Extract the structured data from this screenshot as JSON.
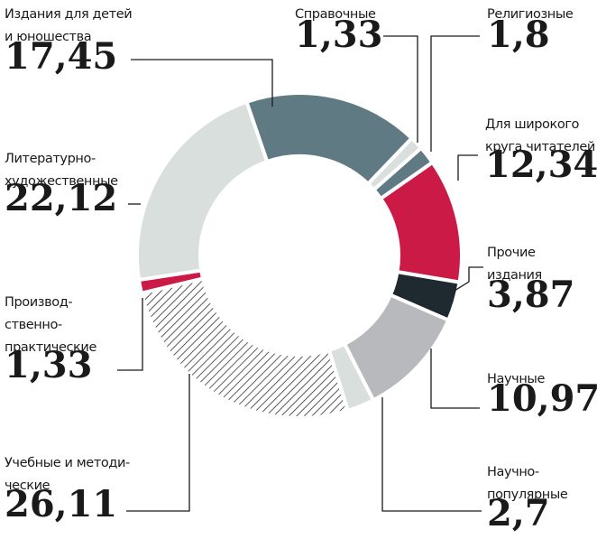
{
  "chart_data": {
    "type": "donut",
    "categories": [
      "Издания для детей\nи юношества",
      "Справочные",
      "Религиозные",
      "Для широкого\nкруга читателей",
      "Прочие\nиздания",
      "Научные",
      "Научно-\nпопулярные",
      "Учебные и методи-\nческие",
      "Производ-\nственно-\nпрактические",
      "Литературно-\nхудожественные"
    ],
    "values": [
      17.45,
      1.33,
      1.8,
      12.34,
      3.87,
      10.97,
      2.7,
      26.11,
      1.33,
      22.12
    ],
    "value_labels": [
      "17,45",
      "1,33",
      "1,8",
      "12,34",
      "3,87",
      "10,97",
      "2,7",
      "26,11",
      "1,33",
      "22,12"
    ],
    "colors": [
      "#5f7a82",
      "#d9dfdc",
      "#5f7a82",
      "#cc1a47",
      "#1e2a30",
      "#b8b9bd",
      "#d9dfdc",
      "hatch",
      "#cc1a47",
      "#d9dfdc"
    ]
  }
}
